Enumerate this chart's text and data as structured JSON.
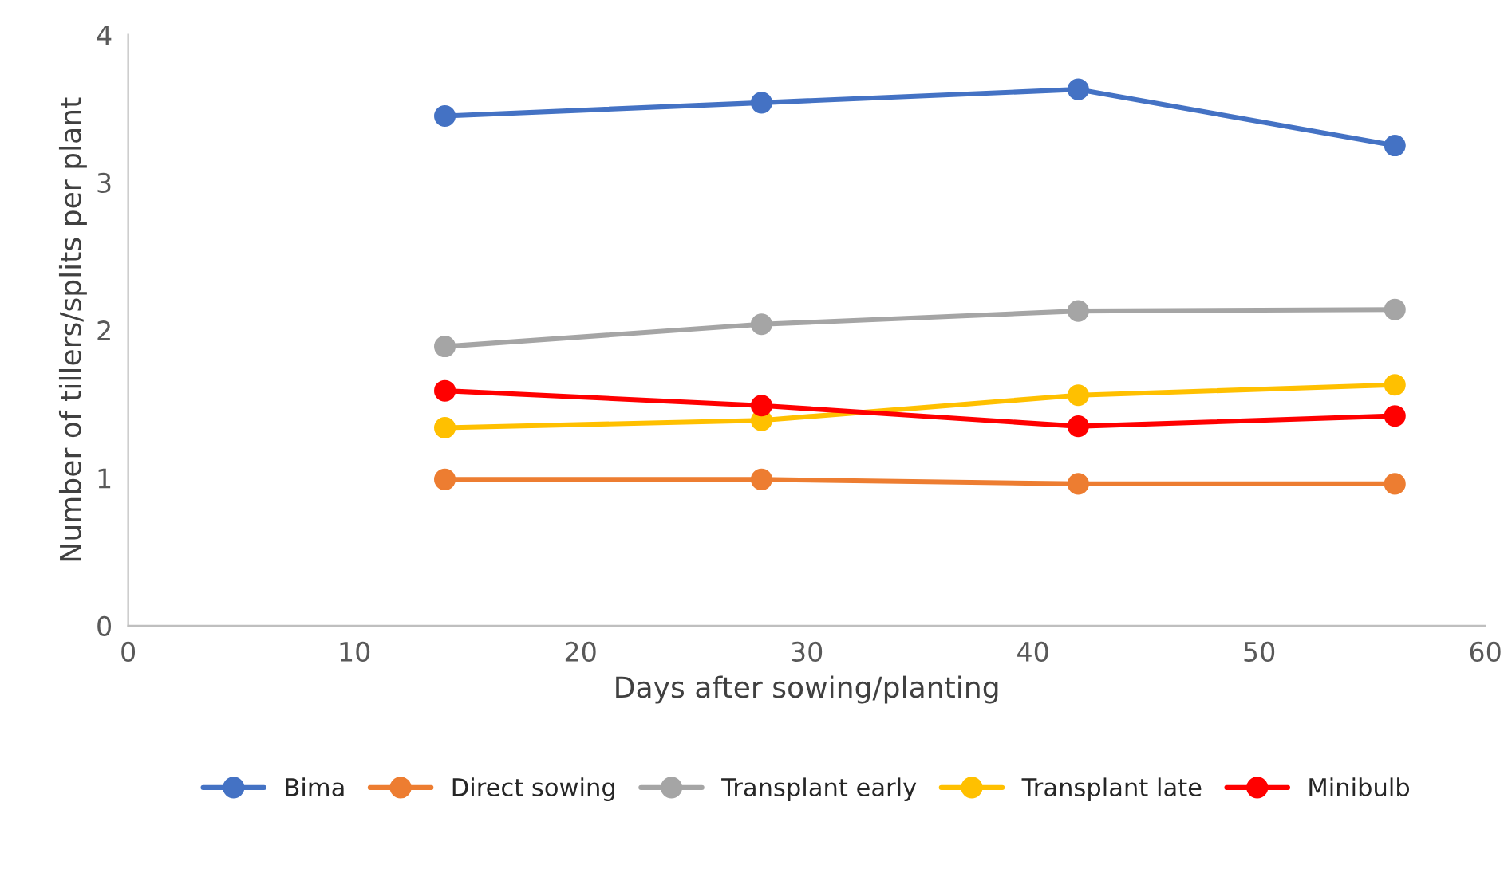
{
  "chart_data": {
    "type": "line",
    "xlabel": "Days after sowing/planting",
    "ylabel": "Number of tillers/splits per plant",
    "x": [
      14,
      28,
      42,
      56
    ],
    "series": [
      {
        "name": "Bima",
        "color": "#4472c4",
        "values": [
          3.45,
          3.54,
          3.63,
          3.25
        ]
      },
      {
        "name": "Direct sowing",
        "color": "#ed7d31",
        "values": [
          0.99,
          0.99,
          0.96,
          0.96
        ]
      },
      {
        "name": "Transplant early",
        "color": "#a5a5a5",
        "values": [
          1.89,
          2.04,
          2.13,
          2.14
        ]
      },
      {
        "name": "Transplant late",
        "color": "#ffc000",
        "values": [
          1.34,
          1.39,
          1.56,
          1.63
        ]
      },
      {
        "name": "Minibulb",
        "color": "#ff0000",
        "values": [
          1.59,
          1.49,
          1.35,
          1.42
        ]
      }
    ],
    "xlim": [
      0,
      60
    ],
    "xticks": [
      0,
      10,
      20,
      30,
      40,
      50,
      60
    ],
    "ylim": [
      0,
      4
    ],
    "yticks": [
      0,
      1,
      2,
      3,
      4
    ],
    "grid": false,
    "legend": "bottom",
    "marker": "circle",
    "line_style": "solid"
  }
}
